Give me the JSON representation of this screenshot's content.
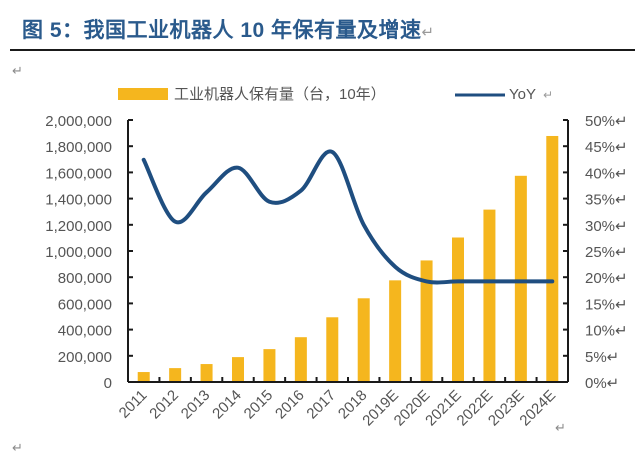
{
  "title": "图 5：我国工业机器人 10 年保有量及增速",
  "return_mark": "↵",
  "colors": {
    "bar": "#f5b61e",
    "line": "#1f4e80",
    "title": "#2a5a8c",
    "axis": "#1a1a1a",
    "text": "#555555"
  },
  "chart_data": {
    "type": "bar",
    "title": "我国工业机器人 10 年保有量及增速",
    "categories": [
      "2011",
      "2012",
      "2013",
      "2014",
      "2015",
      "2016",
      "2017",
      "2018",
      "2019E",
      "2020E",
      "2021E",
      "2022E",
      "2023E",
      "2024E"
    ],
    "series": [
      {
        "name": "工业机器人保有量（台，10年）",
        "type": "bar",
        "axis": "left",
        "values": [
          76000,
          106000,
          137000,
          190000,
          251000,
          342000,
          494000,
          639000,
          776000,
          928000,
          1103000,
          1316000,
          1574000,
          1878000
        ]
      },
      {
        "name": "YoY",
        "type": "line",
        "axis": "right",
        "unit": "%",
        "values": [
          42.4,
          30.6,
          36.2,
          40.9,
          34.4,
          36.5,
          43.9,
          30.0,
          22.0,
          19.2,
          19.2,
          19.2,
          19.2,
          19.2
        ]
      }
    ],
    "left_axis": {
      "range": [
        0,
        2000000
      ],
      "ticks": [
        "0",
        "200,000",
        "400,000",
        "600,000",
        "800,000",
        "1,000,000",
        "1,200,000",
        "1,400,000",
        "1,600,000",
        "1,800,000",
        "2,000,000"
      ]
    },
    "right_axis": {
      "range": [
        0,
        50
      ],
      "ticks": [
        "0%",
        "5%",
        "10%",
        "15%",
        "20%",
        "25%",
        "30%",
        "35%",
        "40%",
        "45%",
        "50%"
      ]
    },
    "legend": {
      "placement": "top",
      "items": [
        "工业机器人保有量（台，10年）",
        "YoY"
      ]
    },
    "grid": false
  }
}
